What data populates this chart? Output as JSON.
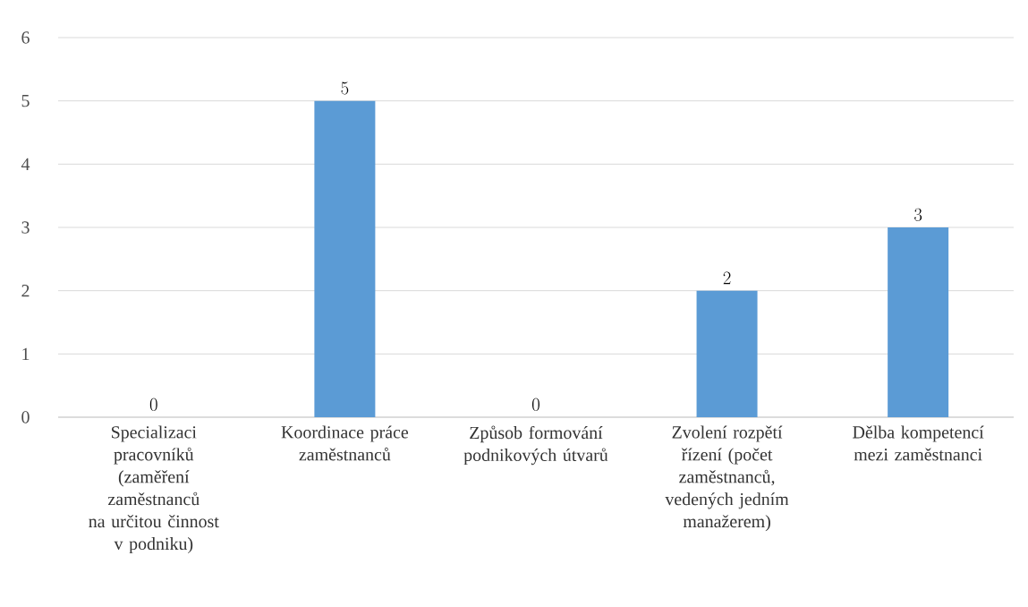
{
  "chart_data": {
    "type": "bar",
    "categories": [
      "Specializaci pracovníků (zaměření zaměstnanců na určitou činnost v podniku)",
      "Koordinace práce zaměstnanců",
      "Způsob formování podnikových útvarů",
      "Zvolení rozpětí řízení (počet zaměstnanců, vedených jedním manažerem)",
      "Dělba kompetencí mezi zaměstnanci"
    ],
    "values": [
      0,
      5,
      0,
      2,
      3
    ],
    "color": "#5b9bd5",
    "ylim": [
      0,
      6
    ],
    "yticks": [
      0,
      1,
      2,
      3,
      4,
      5,
      6
    ],
    "grid": "y",
    "data_labels": true
  }
}
